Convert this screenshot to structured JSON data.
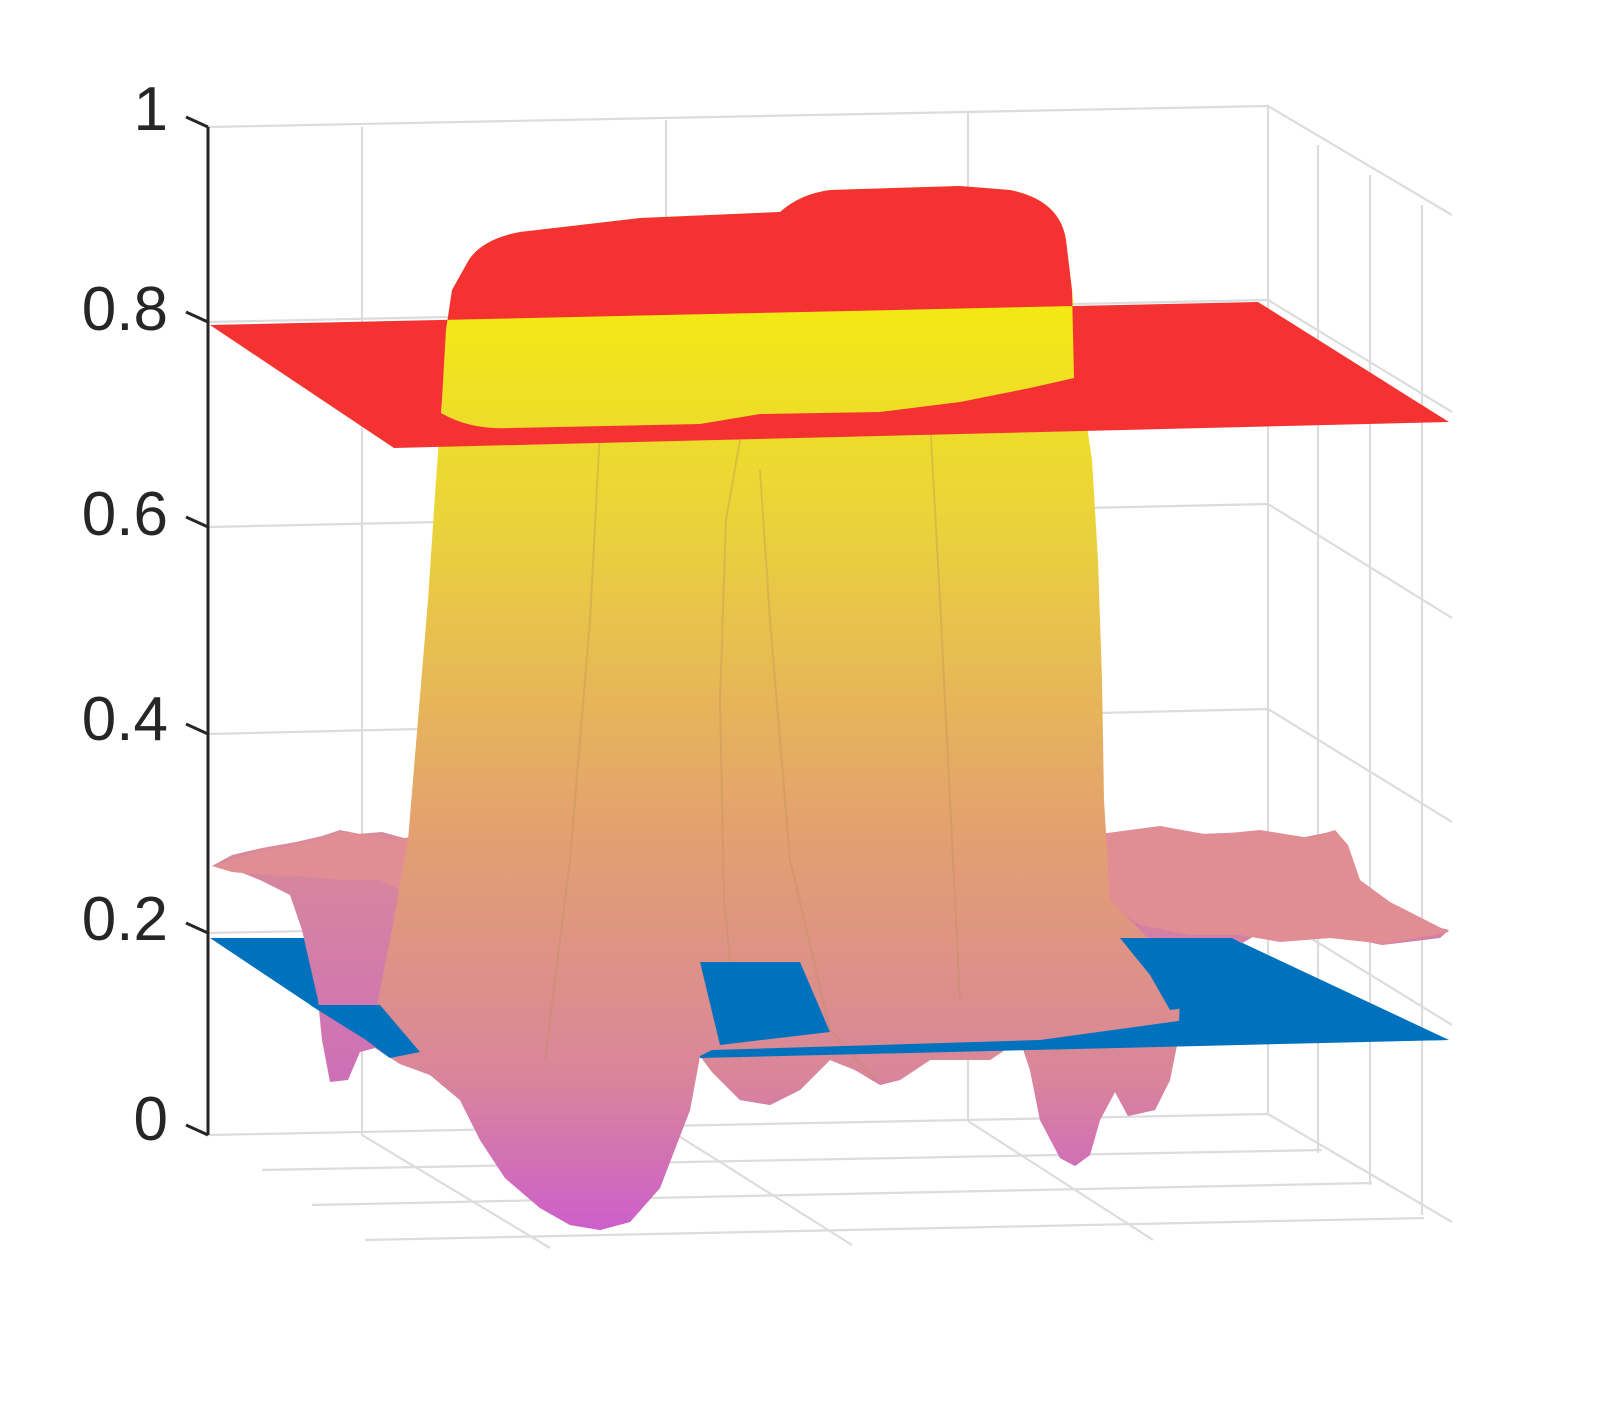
{
  "chart_data": {
    "type": "surface3d",
    "title": "",
    "xlabel": "",
    "ylabel": "",
    "zlabel": "",
    "zlim": [
      0,
      1
    ],
    "z_ticks": [
      "0",
      "0.2",
      "0.4",
      "0.6",
      "0.8",
      "1"
    ],
    "grid": true,
    "legend": "none",
    "planes": [
      {
        "z": 0.8,
        "color": "#f43232"
      },
      {
        "z": 0.2,
        "color": "#0072bd"
      }
    ],
    "surfaces": [
      {
        "kind": "tall-peak",
        "max_z": 0.91,
        "min_z": 0.0,
        "color_top": "#f5f50a",
        "color_bottom": "#cc5ccc"
      },
      {
        "kind": "plateau-noise",
        "level_z": 0.26,
        "color": "#e08a94"
      }
    ]
  }
}
